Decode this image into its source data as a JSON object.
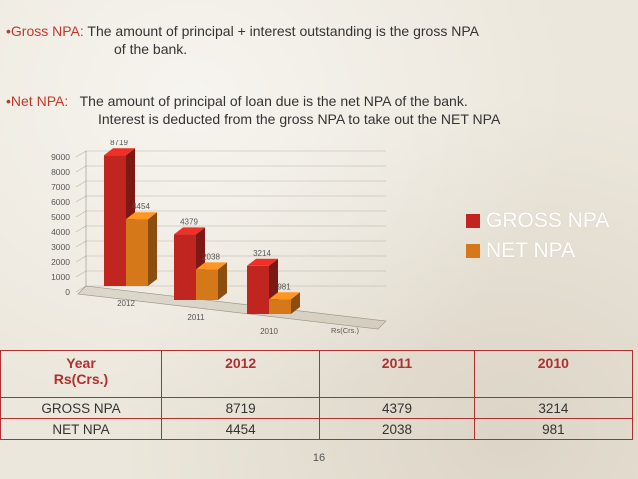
{
  "bullets": [
    {
      "term": "•Gross NPA:",
      "line1": " The amount of principal + interest outstanding is the gross NPA",
      "line2": "of the bank."
    },
    {
      "term": "•Net NPA:",
      "line1": "   The amount of principal of loan due is the net NPA of the bank.",
      "line2": "Interest is deducted from the gross NPA to take out the NET NPA"
    }
  ],
  "chart_data": {
    "type": "bar",
    "categories": [
      "2012",
      "2011",
      "2010"
    ],
    "series": [
      {
        "name": "GROSS NPA",
        "values": [
          8719,
          4379,
          3214
        ],
        "color": "#c0261f"
      },
      {
        "name": "NET NPA",
        "values": [
          4454,
          2038,
          981
        ],
        "color": "#d4781a"
      }
    ],
    "yticks": [
      "9000",
      "8000",
      "7000",
      "6000",
      "5000",
      "4000",
      "3000",
      "2000",
      "1000",
      "0"
    ],
    "ylim": [
      0,
      9000
    ],
    "xlabel": "Rs(Crs.)",
    "legend_position": "right",
    "grid": true
  },
  "legend": [
    {
      "label": "GROSS NPA",
      "color": "#c0261f"
    },
    {
      "label": "NET NPA",
      "color": "#d4781a"
    }
  ],
  "table": {
    "header": [
      "Year\nRs(Crs.)",
      "2012",
      "2011",
      "2010"
    ],
    "rows": [
      [
        "GROSS NPA",
        "8719",
        "4379",
        "3214"
      ],
      [
        "NET NPA",
        "4454",
        "2038",
        "981"
      ]
    ]
  },
  "page_number": "16"
}
